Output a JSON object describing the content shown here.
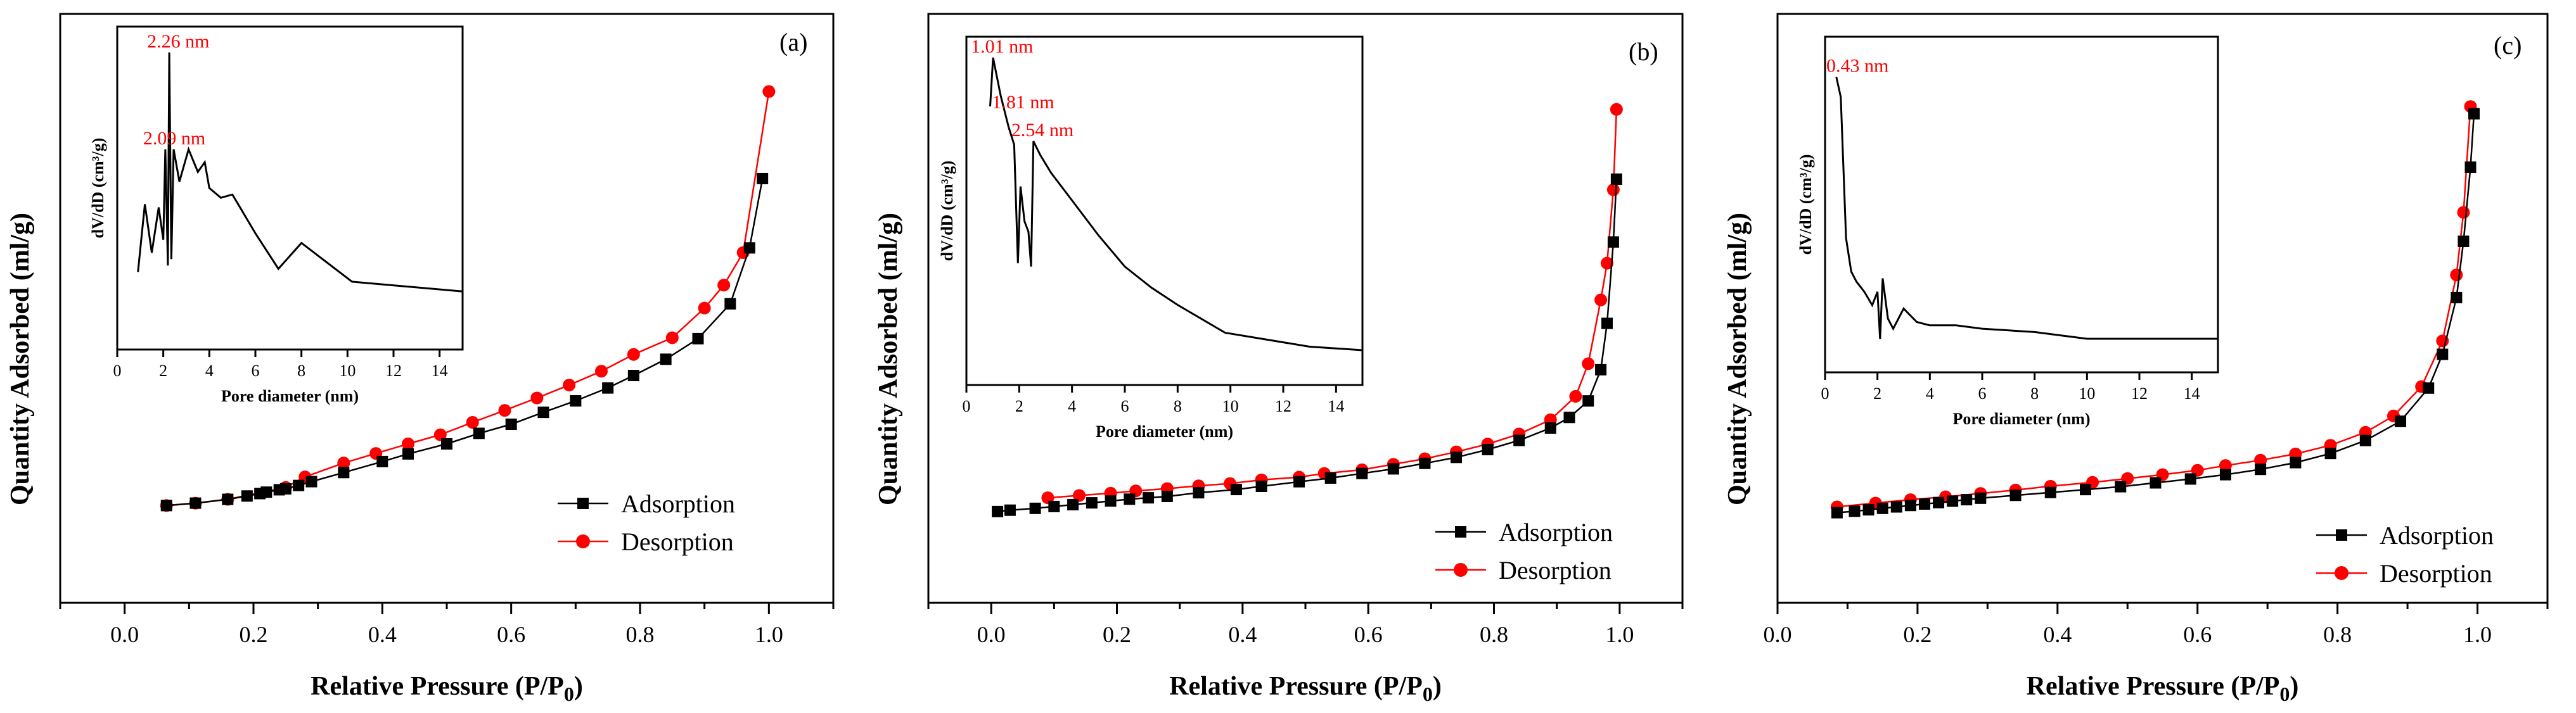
{
  "chart_data": [
    {
      "type": "line",
      "panel_label": "(a)",
      "xlabel": "Relative Pressure (P/P",
      "xlabel_sub": "0",
      "xlabel_close": ")",
      "ylabel": "Quantity Adsorbed (ml/g)",
      "xlim": [
        -0.1,
        1.1
      ],
      "ylim": [
        0,
        100
      ],
      "xticks": [
        "0.0",
        "0.2",
        "0.4",
        "0.6",
        "0.8",
        "1.0"
      ],
      "legend": "bottom-right",
      "colors": {
        "adsorption": "#000000",
        "desorption": "#ff0000"
      },
      "series": [
        {
          "name": "Adsorption",
          "marker": "square",
          "x": [
            0.065,
            0.11,
            0.16,
            0.19,
            0.21,
            0.22,
            0.24,
            0.25,
            0.27,
            0.29,
            0.34,
            0.4,
            0.44,
            0.5,
            0.55,
            0.6,
            0.65,
            0.7,
            0.75,
            0.79,
            0.84,
            0.89,
            0.94,
            0.97,
            0.99
          ],
          "y": [
            7.5,
            8.0,
            8.8,
            9.5,
            10.0,
            10.3,
            10.8,
            11.0,
            11.7,
            12.5,
            14.4,
            16.7,
            18.3,
            20.4,
            22.6,
            24.5,
            27.0,
            29.4,
            32.1,
            34.7,
            38.1,
            42.4,
            49.7,
            61.4,
            75.9
          ]
        },
        {
          "name": "Desorption",
          "marker": "circle",
          "x": [
            0.065,
            0.11,
            0.16,
            0.25,
            0.28,
            0.34,
            0.39,
            0.44,
            0.49,
            0.54,
            0.59,
            0.64,
            0.69,
            0.74,
            0.79,
            0.85,
            0.9,
            0.93,
            0.96,
            1.0
          ],
          "y": [
            7.5,
            8.0,
            8.8,
            11.3,
            13.5,
            16.4,
            18.4,
            20.4,
            22.3,
            24.9,
            27.4,
            30.0,
            32.7,
            35.6,
            39.1,
            42.6,
            48.8,
            53.6,
            60.4,
            94.1
          ]
        }
      ],
      "inset": {
        "xlabel": "Pore diameter (nm)",
        "ylabel": "dV/dD (cm³/g)",
        "xlim": [
          0,
          15
        ],
        "ylim": [
          0,
          100
        ],
        "xticks": [
          "0",
          "2",
          "4",
          "6",
          "8",
          "10",
          "12",
          "14"
        ],
        "curve": {
          "x": [
            0.9,
            1.2,
            1.5,
            1.8,
            2.0,
            2.09,
            2.2,
            2.26,
            2.35,
            2.45,
            2.7,
            3.1,
            3.5,
            3.8,
            4.0,
            4.5,
            5.0,
            6.0,
            7.0,
            8.0,
            10.2,
            15.0
          ],
          "y": [
            24,
            45,
            30,
            44,
            34,
            62,
            26,
            92,
            28,
            62,
            52,
            62,
            55,
            58,
            50,
            47,
            48,
            36,
            25,
            33,
            21,
            18
          ]
        },
        "annotations": [
          {
            "text": "2.26 nm",
            "x": 2.26,
            "y": 92
          },
          {
            "text": "2.09 nm",
            "x": 2.09,
            "y": 62
          }
        ]
      }
    },
    {
      "type": "line",
      "panel_label": "(b)",
      "xlabel": "Relative Pressure (P/P",
      "xlabel_sub": "0",
      "xlabel_close": ")",
      "ylabel": "Quantity Adsorbed (ml/g)",
      "xlim": [
        -0.1,
        1.1
      ],
      "ylim": [
        0,
        100
      ],
      "xticks": [
        "0.0",
        "0.2",
        "0.4",
        "0.6",
        "0.8",
        "1.0"
      ],
      "legend": "bottom-right",
      "colors": {
        "adsorption": "#000000",
        "desorption": "#ff0000"
      },
      "series": [
        {
          "name": "Adsorption",
          "marker": "square",
          "x": [
            0.01,
            0.03,
            0.07,
            0.1,
            0.13,
            0.16,
            0.19,
            0.22,
            0.25,
            0.28,
            0.33,
            0.39,
            0.43,
            0.49,
            0.54,
            0.59,
            0.64,
            0.69,
            0.74,
            0.79,
            0.84,
            0.89,
            0.92,
            0.95,
            0.97,
            0.98,
            0.99,
            0.995
          ],
          "y": [
            6.5,
            6.8,
            7.2,
            7.6,
            8.0,
            8.4,
            8.8,
            9.2,
            9.5,
            9.8,
            10.6,
            11.3,
            12.0,
            13.0,
            13.8,
            14.8,
            15.8,
            17.0,
            18.3,
            20.0,
            22.0,
            24.7,
            27.0,
            30.6,
            37.4,
            47.5,
            65.2,
            78.9
          ]
        },
        {
          "name": "Desorption",
          "marker": "circle",
          "x": [
            0.09,
            0.14,
            0.19,
            0.23,
            0.28,
            0.33,
            0.38,
            0.43,
            0.49,
            0.53,
            0.59,
            0.64,
            0.69,
            0.74,
            0.79,
            0.84,
            0.89,
            0.93,
            0.95,
            0.97,
            0.98,
            0.99,
            0.995
          ],
          "y": [
            9.5,
            10.0,
            10.5,
            11.0,
            11.5,
            12.1,
            12.6,
            13.4,
            14.0,
            14.8,
            15.6,
            16.8,
            18.0,
            19.5,
            21.2,
            23.4,
            26.5,
            31.6,
            38.7,
            52.6,
            60.6,
            76.6,
            94.1
          ]
        }
      ],
      "inset": {
        "xlabel": "Pore diameter (nm)",
        "ylabel": "dV/dD (cm³/g)",
        "xlim": [
          0,
          15
        ],
        "ylim": [
          0,
          100
        ],
        "xticks": [
          "0",
          "2",
          "4",
          "6",
          "8",
          "10",
          "12",
          "14"
        ],
        "curve": {
          "x": [
            0.9,
            1.01,
            1.3,
            1.6,
            1.81,
            1.95,
            2.05,
            2.2,
            2.35,
            2.45,
            2.54,
            2.8,
            3.2,
            3.6,
            4.0,
            5.0,
            6.0,
            7.0,
            8.0,
            9.8,
            13.0,
            15.0
          ],
          "y": [
            80,
            94,
            83,
            74,
            69,
            35,
            57,
            47,
            44,
            34,
            70,
            66,
            61,
            57,
            53,
            43,
            34,
            28,
            23,
            15,
            11,
            10
          ]
        },
        "annotations": [
          {
            "text": "1.01 nm",
            "x": 1.01,
            "y": 94
          },
          {
            "text": "1.81 nm",
            "x": 1.81,
            "y": 78
          },
          {
            "text": "2.54 nm",
            "x": 2.54,
            "y": 70
          }
        ]
      }
    },
    {
      "type": "line",
      "panel_label": "(c)",
      "xlabel": "Relative Pressure (P/P",
      "xlabel_sub": "0",
      "xlabel_close": ")",
      "ylabel": "Quantity Adsorbed (ml/g)",
      "xlim": [
        0.0,
        1.1
      ],
      "ylim": [
        0,
        100
      ],
      "xticks": [
        "0.0",
        "0.2",
        "0.4",
        "0.6",
        "0.8",
        "1.0"
      ],
      "legend": "bottom-right",
      "colors": {
        "adsorption": "#000000",
        "desorption": "#ff0000"
      },
      "series": [
        {
          "name": "Adsorption",
          "marker": "square",
          "x": [
            0.085,
            0.11,
            0.13,
            0.15,
            0.17,
            0.19,
            0.21,
            0.23,
            0.25,
            0.27,
            0.29,
            0.34,
            0.39,
            0.44,
            0.49,
            0.54,
            0.59,
            0.64,
            0.69,
            0.74,
            0.79,
            0.84,
            0.89,
            0.93,
            0.95,
            0.97,
            0.98,
            0.99,
            0.995
          ],
          "y": [
            8.6,
            8.9,
            9.2,
            9.5,
            9.8,
            10.1,
            10.4,
            10.7,
            11.0,
            11.3,
            11.6,
            12.2,
            12.8,
            13.4,
            14.0,
            14.8,
            15.6,
            16.5,
            17.6,
            19.0,
            20.9,
            23.6,
            27.6,
            34.5,
            41.5,
            53.3,
            65.0,
            80.4,
            91.5
          ]
        },
        {
          "name": "Desorption",
          "marker": "circle",
          "x": [
            0.085,
            0.14,
            0.19,
            0.24,
            0.29,
            0.34,
            0.39,
            0.45,
            0.5,
            0.55,
            0.6,
            0.64,
            0.69,
            0.74,
            0.79,
            0.84,
            0.88,
            0.92,
            0.95,
            0.97,
            0.98,
            0.99
          ],
          "y": [
            9.8,
            10.6,
            11.3,
            11.9,
            12.6,
            13.3,
            14.1,
            14.9,
            15.7,
            16.5,
            17.4,
            18.4,
            19.5,
            20.8,
            22.6,
            25.3,
            28.7,
            34.8,
            44.3,
            58.0,
            71.0,
            93.0
          ]
        }
      ],
      "inset": {
        "xlabel": "Pore diameter (nm)",
        "ylabel": "dV/dD (cm³/g)",
        "xlim": [
          0,
          15
        ],
        "ylim": [
          0,
          100
        ],
        "xticks": [
          "0",
          "2",
          "4",
          "6",
          "8",
          "10",
          "12",
          "14"
        ],
        "curve": {
          "x": [
            0.43,
            0.6,
            0.8,
            1.0,
            1.2,
            1.5,
            1.8,
            2.0,
            2.1,
            2.2,
            2.4,
            2.6,
            3.0,
            3.5,
            4.0,
            5.0,
            6.0,
            8.0,
            10.0,
            12.0,
            15.0
          ],
          "y": [
            88,
            82,
            40,
            30,
            27,
            24,
            20,
            24,
            10,
            28,
            16,
            13,
            19,
            15,
            14,
            14,
            13,
            12,
            10,
            10,
            10
          ]
        },
        "annotations": [
          {
            "text": "0.43 nm",
            "x": 0.43,
            "y": 88
          }
        ]
      }
    }
  ]
}
